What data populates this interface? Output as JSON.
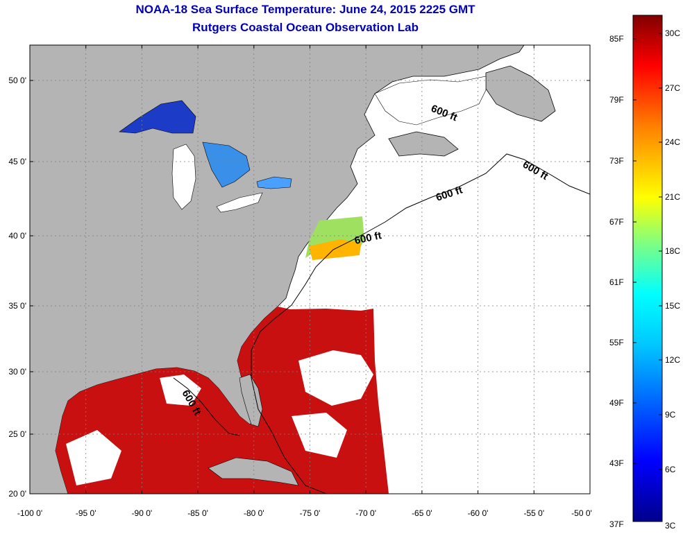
{
  "title": {
    "line1": "NOAA-18 Sea Surface Temperature:  June 24, 2015 2225 GMT",
    "line2": "Rutgers Coastal Ocean Observation Lab"
  },
  "map": {
    "lon_ticks": [
      "-100 0'",
      "-95 0'",
      "-90 0'",
      "-85 0'",
      "-80 0'",
      "-75 0'",
      "-70 0'",
      "-65 0'",
      "-60 0'",
      "-55 0'",
      "-50 0'"
    ],
    "lat_ticks": [
      "50 0'",
      "45 0'",
      "40 0'",
      "35 0'",
      "30 0'",
      "25 0'",
      "20 0'"
    ],
    "contour_label": "600 ft",
    "colors": {
      "land": "#b4b4b4",
      "ocean_no_data": "#ffffff",
      "grid": "#808080"
    }
  },
  "colorbar": {
    "fahrenheit_labels": [
      "85F",
      "79F",
      "73F",
      "67F",
      "61F",
      "55F",
      "49F",
      "43F",
      "37F"
    ],
    "celsius_labels": [
      "30C",
      "27C",
      "24C",
      "21C",
      "18C",
      "15C",
      "12C",
      "9C",
      "6C",
      "3C"
    ]
  }
}
